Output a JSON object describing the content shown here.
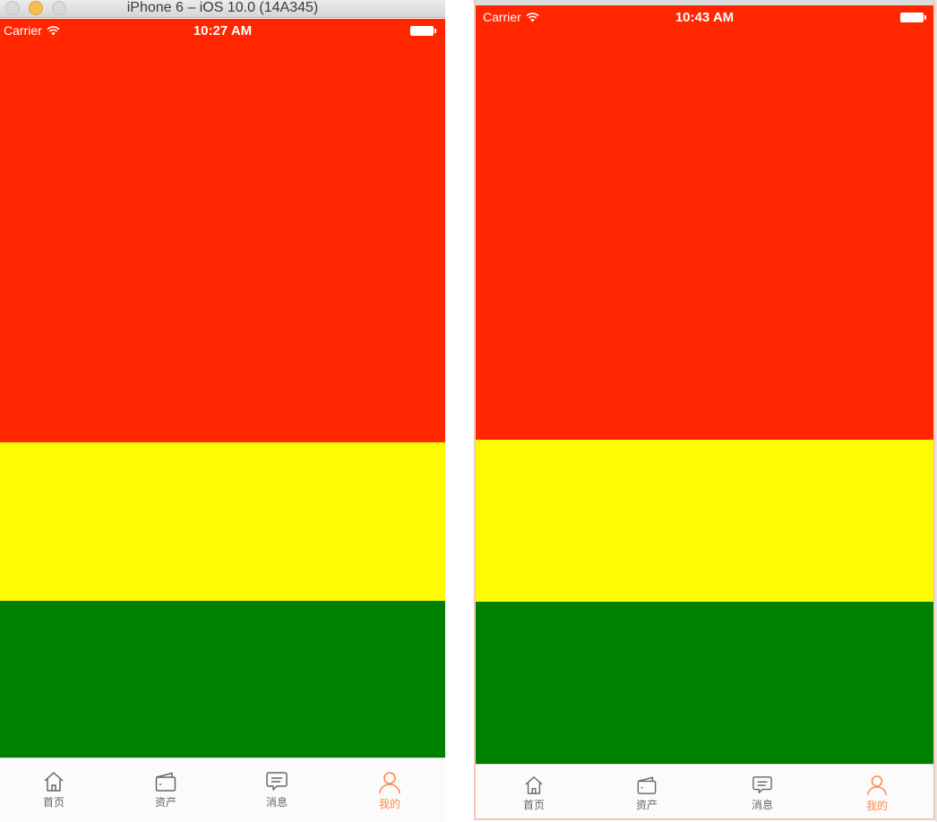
{
  "left_window": {
    "title": "iPhone 6 – iOS 10.0 (14A345)",
    "status": {
      "carrier": "Carrier",
      "time": "10:27 AM"
    }
  },
  "right_window": {
    "status": {
      "carrier": "Carrier",
      "time": "10:43 AM"
    }
  },
  "bands": {
    "red": "#ff2600",
    "yellow": "#fffb00",
    "green": "#008000"
  },
  "tabbar": {
    "items": [
      {
        "label": "首页",
        "icon": "home-icon"
      },
      {
        "label": "资产",
        "icon": "wallet-icon"
      },
      {
        "label": "消息",
        "icon": "message-icon"
      },
      {
        "label": "我的",
        "icon": "person-icon",
        "active": true
      }
    ],
    "active_color": "#ff8a4c",
    "inactive_color": "#666666"
  }
}
